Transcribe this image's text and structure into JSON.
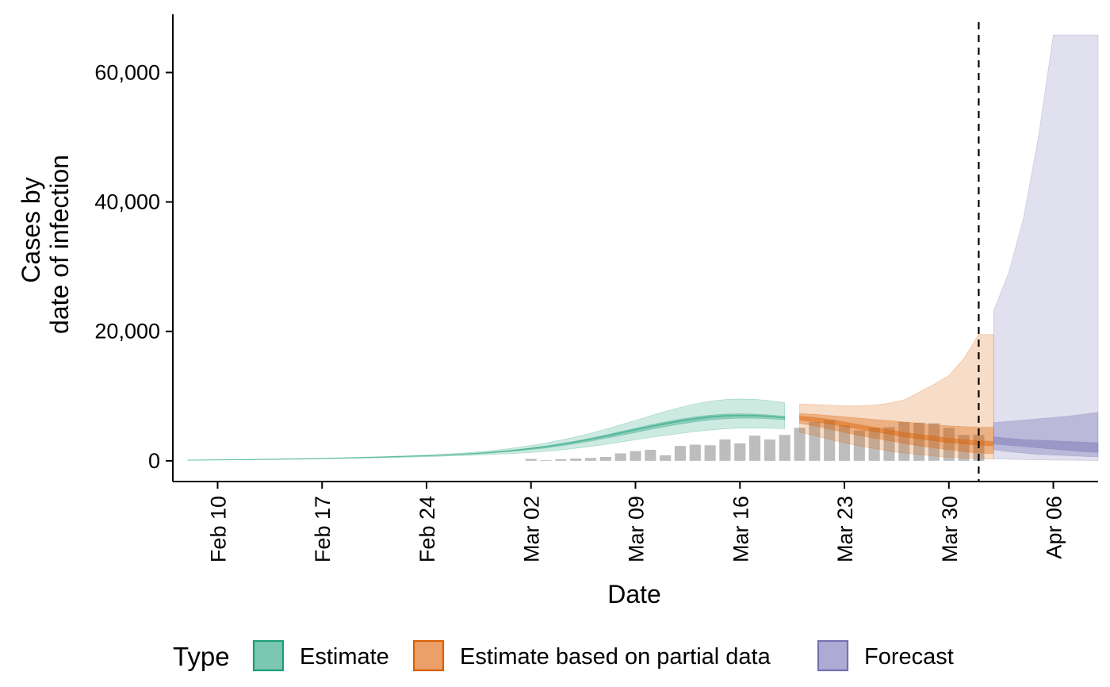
{
  "chart_data": {
    "type": "area",
    "title": "",
    "xlabel": "Date",
    "ylabel_lines": [
      "Cases by",
      "date of infection"
    ],
    "x_range": [
      "2020-02-07",
      "2020-04-09"
    ],
    "ylim": [
      -3200,
      69000
    ],
    "x_ticks": [
      {
        "date": "2020-02-10",
        "label": "Feb 10"
      },
      {
        "date": "2020-02-17",
        "label": "Feb 17"
      },
      {
        "date": "2020-02-24",
        "label": "Feb 24"
      },
      {
        "date": "2020-03-02",
        "label": "Mar 02"
      },
      {
        "date": "2020-03-09",
        "label": "Mar 09"
      },
      {
        "date": "2020-03-16",
        "label": "Mar 16"
      },
      {
        "date": "2020-03-23",
        "label": "Mar 23"
      },
      {
        "date": "2020-03-30",
        "label": "Mar 30"
      },
      {
        "date": "2020-04-06",
        "label": "Apr 06"
      }
    ],
    "y_ticks": [
      {
        "value": 0,
        "label": "0"
      },
      {
        "value": 20000,
        "label": "20,000"
      },
      {
        "value": 40000,
        "label": "40,000"
      },
      {
        "value": 60000,
        "label": "60,000"
      }
    ],
    "forecast_start_line": "2020-04-01",
    "colors": {
      "Estimate": "#1b9e77",
      "Estimate based on partial data": "#d95f02",
      "Forecast": "#7570b3",
      "observed_bars": "#bdbdbd"
    },
    "legend": {
      "title": "Type",
      "position": "bottom",
      "items": [
        {
          "label": "Estimate",
          "fill": "#7cc7b0",
          "stroke": "#1b9e77"
        },
        {
          "label": "Estimate based on partial data",
          "fill": "#eba06a",
          "stroke": "#d95f02"
        },
        {
          "label": "Forecast",
          "fill": "#aeaad4",
          "stroke": "#7570b3"
        }
      ]
    },
    "observed": {
      "start": "2020-03-02",
      "values": [
        300,
        100,
        250,
        350,
        450,
        600,
        1150,
        1500,
        1700,
        850,
        2300,
        2500,
        2400,
        3300,
        2700,
        3900,
        3300,
        4000,
        5100,
        6000,
        6300,
        5500,
        4700,
        5100,
        5200,
        6000,
        5900,
        5800,
        5100,
        4000,
        4000
      ]
    },
    "series": [
      {
        "name": "Estimate",
        "start": "2020-02-08",
        "band90_lower": [
          80,
          100,
          120,
          140,
          160,
          180,
          200,
          230,
          260,
          300,
          340,
          380,
          420,
          470,
          520,
          580,
          640,
          710,
          780,
          860,
          950,
          1050,
          1160,
          1300,
          1470,
          1680,
          1930,
          2220,
          2550,
          2900,
          3260,
          3600,
          3930,
          4240,
          4520,
          4760,
          4940,
          5050,
          5080,
          5040,
          4960
        ],
        "band90_upper": [
          120,
          145,
          170,
          200,
          230,
          260,
          290,
          330,
          370,
          420,
          470,
          530,
          590,
          660,
          730,
          810,
          900,
          1010,
          1140,
          1300,
          1500,
          1740,
          2030,
          2370,
          2760,
          3200,
          3700,
          4260,
          4880,
          5550,
          6250,
          6960,
          7640,
          8260,
          8790,
          9200,
          9460,
          9560,
          9500,
          9300,
          9000
        ],
        "band50_lower": [
          90,
          115,
          135,
          160,
          185,
          210,
          235,
          265,
          300,
          345,
          390,
          440,
          490,
          550,
          610,
          680,
          750,
          830,
          920,
          1030,
          1160,
          1320,
          1510,
          1730,
          1990,
          2300,
          2650,
          3040,
          3470,
          3920,
          4380,
          4840,
          5280,
          5680,
          6030,
          6310,
          6500,
          6590,
          6580,
          6490,
          6340
        ],
        "band50_upper": [
          105,
          130,
          155,
          180,
          205,
          235,
          260,
          295,
          335,
          380,
          430,
          480,
          535,
          600,
          665,
          740,
          820,
          910,
          1020,
          1150,
          1310,
          1500,
          1730,
          2000,
          2310,
          2670,
          3070,
          3520,
          4010,
          4530,
          5050,
          5560,
          6030,
          6450,
          6800,
          7060,
          7230,
          7280,
          7230,
          7090,
          6880
        ],
        "band20_lower": [
          95,
          120,
          145,
          170,
          195,
          222,
          248,
          280,
          318,
          362,
          410,
          460,
          512,
          575,
          638,
          710,
          785,
          870,
          970,
          1090,
          1235,
          1410,
          1620,
          1865,
          2150,
          2485,
          2860,
          3280,
          3740,
          4225,
          4715,
          5200,
          5655,
          6065,
          6415,
          6685,
          6865,
          6935,
          6905,
          6790,
          6610
        ],
        "band20_upper": [
          100,
          125,
          150,
          175,
          200,
          228,
          252,
          288,
          326,
          370,
          418,
          470,
          522,
          585,
          650,
          722,
          800,
          888,
          992,
          1118,
          1270,
          1455,
          1675,
          1935,
          2235,
          2585,
          2975,
          3410,
          3885,
          4385,
          4885,
          5380,
          5840,
          6250,
          6595,
          6860,
          7030,
          7090,
          7050,
          6920,
          6730
        ]
      },
      {
        "name": "Estimate based on partial data",
        "start": "2020-03-20",
        "band90_lower": [
          4400,
          3900,
          3300,
          2800,
          2300,
          1900,
          1500,
          1200,
          950,
          720,
          550,
          420,
          330,
          260
        ],
        "band90_upper": [
          8800,
          8700,
          8600,
          8500,
          8500,
          8600,
          8900,
          9400,
          10600,
          11800,
          13200,
          15800,
          19500,
          19500
        ],
        "band50_lower": [
          5800,
          5400,
          4900,
          4400,
          3900,
          3500,
          3100,
          2700,
          2300,
          2000,
          1700,
          1400,
          1200,
          1100
        ],
        "band50_upper": [
          7300,
          7200,
          7000,
          6800,
          6600,
          6400,
          6200,
          6000,
          5800,
          5600,
          5400,
          5300,
          5200,
          5200
        ],
        "band20_lower": [
          6300,
          6000,
          5700,
          5300,
          4900,
          4500,
          4100,
          3700,
          3400,
          3100,
          2800,
          2600,
          2400,
          2300
        ],
        "band20_upper": [
          6900,
          6700,
          6400,
          6000,
          5600,
          5200,
          4800,
          4400,
          4100,
          3800,
          3500,
          3300,
          3100,
          3000
        ]
      },
      {
        "name": "Forecast",
        "start": "2020-04-02",
        "band90_lower": [
          300,
          250,
          200,
          150,
          120,
          100,
          80,
          60
        ],
        "band90_upper": [
          23200,
          29000,
          37500,
          50000,
          65800,
          65800,
          65800,
          65800
        ],
        "band50_lower": [
          1700,
          1400,
          1200,
          1000,
          900,
          800,
          700,
          600
        ],
        "band50_upper": [
          5900,
          6100,
          6300,
          6500,
          6700,
          6900,
          7200,
          7500
        ],
        "band20_lower": [
          2600,
          2400,
          2200,
          2000,
          1800,
          1600,
          1400,
          1300
        ],
        "band20_upper": [
          3700,
          3500,
          3300,
          3200,
          3100,
          3000,
          2900,
          2800
        ]
      }
    ]
  }
}
